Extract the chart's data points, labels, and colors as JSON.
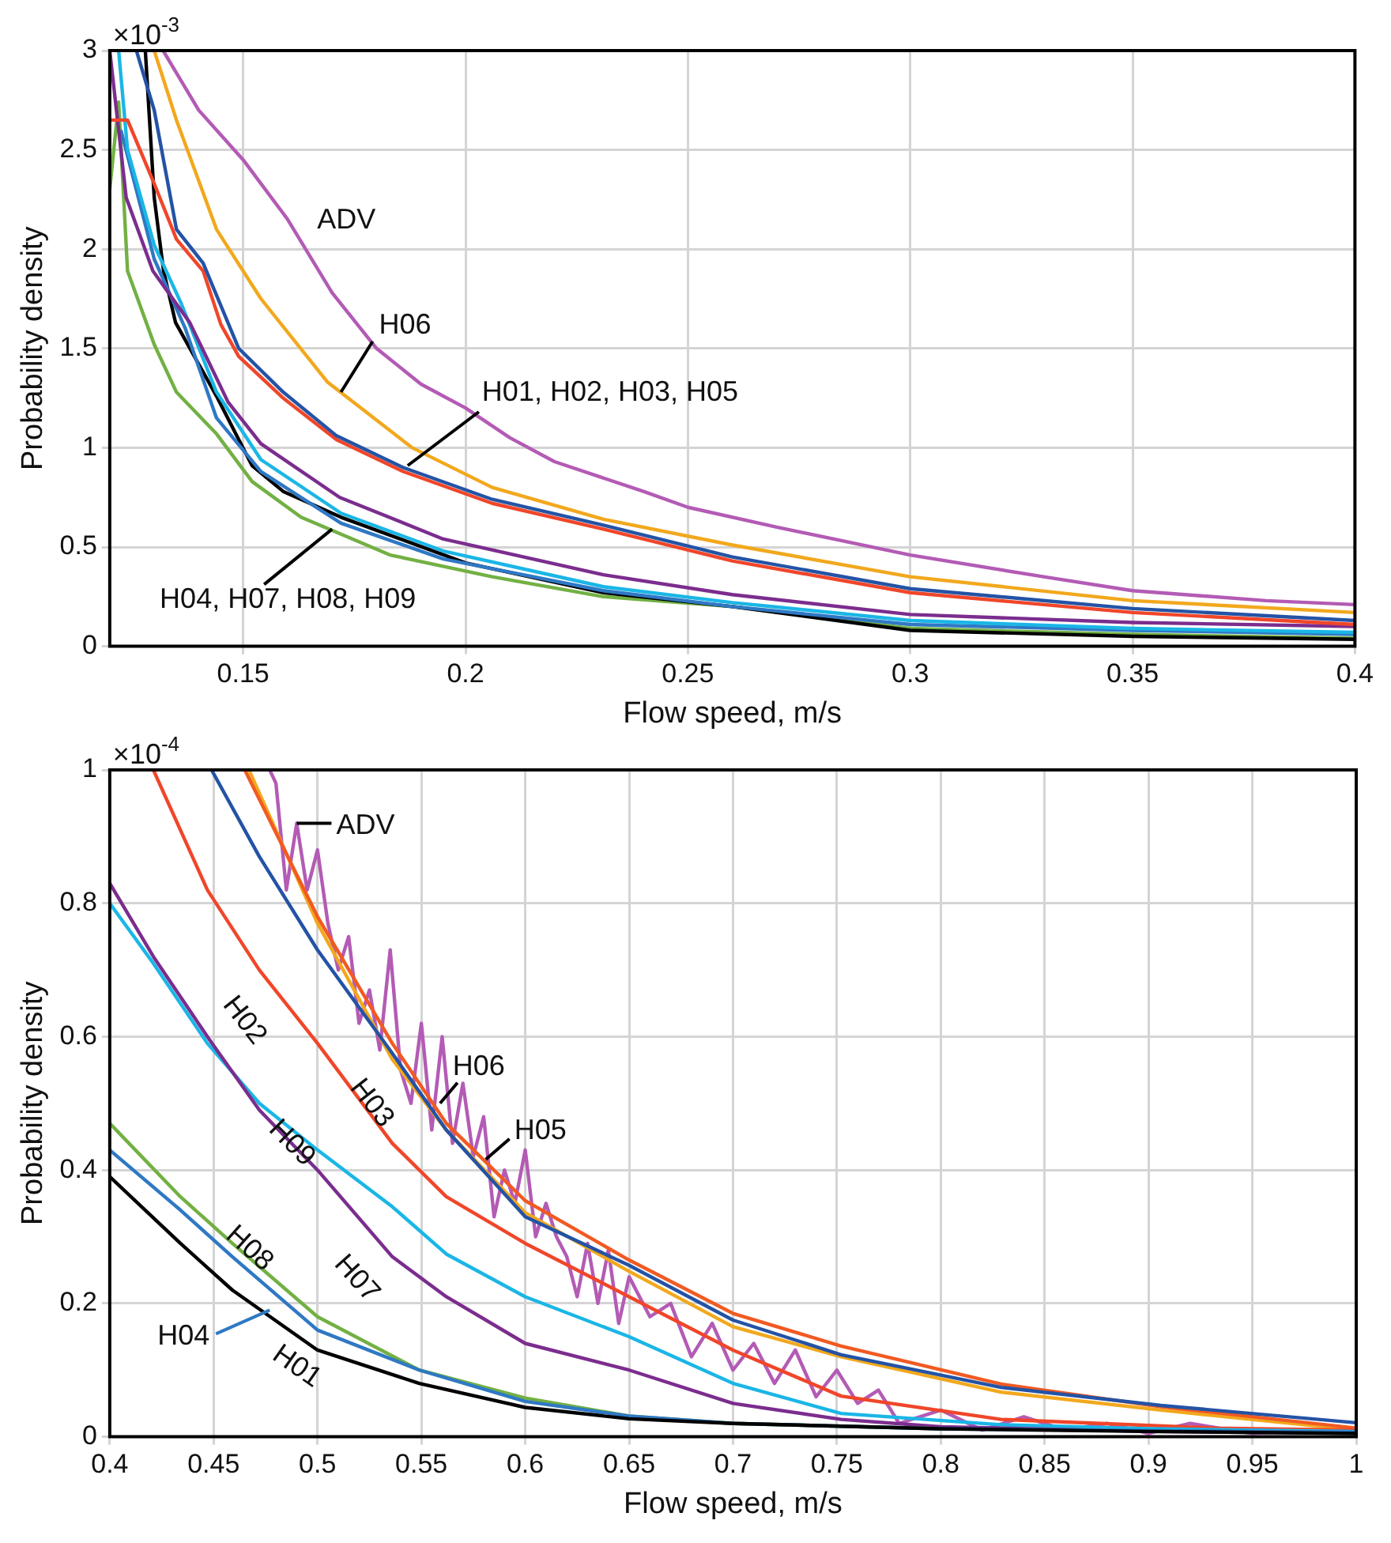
{
  "chart_data": [
    {
      "type": "line",
      "xlabel": "Flow speed, m/s",
      "ylabel": "Probability density",
      "xlim": [
        0.12,
        0.4
      ],
      "ylim": [
        0,
        3
      ],
      "xticks": [
        0.15,
        0.2,
        0.25,
        0.3,
        0.35,
        0.4
      ],
      "yticks": [
        0,
        0.5,
        1,
        1.5,
        2,
        2.5,
        3
      ],
      "grid": true,
      "legend": false,
      "marker": "none",
      "annotations": [
        "×10$^{-3}$",
        "ADV",
        {
          "text": "H06",
          "x": 0.172,
          "y": 1.28
        },
        {
          "text": "H01, H02, H03, H05",
          "x": 0.187,
          "y": 0.91
        },
        {
          "text": "H04, H07, H08, H09",
          "x": 0.17,
          "y": 0.59
        }
      ],
      "series": [
        {
          "color": "#b35bb5",
          "x": [
            0.132,
            0.14,
            0.15,
            0.16,
            0.17,
            0.18,
            0.19,
            0.2,
            0.21,
            0.22,
            0.24,
            0.25,
            0.27,
            0.3,
            0.33,
            0.35,
            0.38,
            0.4
          ],
          "values": [
            3,
            2.7,
            2.45,
            2.15,
            1.78,
            1.5,
            1.32,
            1.2,
            1.05,
            0.93,
            0.78,
            0.7,
            0.6,
            0.46,
            0.35,
            0.28,
            0.23,
            0.21
          ]
        },
        {
          "color": "#f2a81d",
          "x": [
            0.13,
            0.135,
            0.144,
            0.154,
            0.169,
            0.188,
            0.206,
            0.231,
            0.26,
            0.3,
            0.35,
            0.4
          ],
          "values": [
            3,
            2.65,
            2.1,
            1.75,
            1.33,
            1.0,
            0.8,
            0.64,
            0.51,
            0.35,
            0.23,
            0.17
          ]
        },
        {
          "color": "#2453a5",
          "x": [
            0.126,
            0.13,
            0.135,
            0.141,
            0.149,
            0.159,
            0.171,
            0.186,
            0.206,
            0.231,
            0.26,
            0.3,
            0.35,
            0.4
          ],
          "values": [
            3,
            2.7,
            2.1,
            1.93,
            1.5,
            1.28,
            1.06,
            0.9,
            0.74,
            0.61,
            0.45,
            0.29,
            0.19,
            0.13
          ]
        },
        {
          "color": "#f0462a",
          "x": [
            0.12,
            0.124,
            0.13,
            0.135,
            0.141,
            0.145,
            0.149,
            0.159,
            0.171,
            0.186,
            0.206,
            0.231,
            0.26,
            0.3,
            0.35,
            0.4
          ],
          "values": [
            2.65,
            2.65,
            2.33,
            2.05,
            1.89,
            1.62,
            1.46,
            1.25,
            1.04,
            0.88,
            0.72,
            0.59,
            0.43,
            0.27,
            0.17,
            0.11
          ]
        },
        {
          "color": "#7b2d8e",
          "x": [
            0.12,
            0.1237,
            0.1297,
            0.138,
            0.1466,
            0.154,
            0.1717,
            0.195,
            0.231,
            0.26,
            0.3,
            0.35,
            0.4
          ],
          "values": [
            3,
            2.26,
            1.89,
            1.63,
            1.23,
            1.02,
            0.75,
            0.54,
            0.36,
            0.26,
            0.16,
            0.12,
            0.1
          ]
        },
        {
          "color": "#1ab6e6",
          "x": [
            0.122,
            0.124,
            0.13,
            0.136,
            0.144,
            0.154,
            0.172,
            0.195,
            0.231,
            0.26,
            0.3,
            0.35,
            0.4
          ],
          "values": [
            3,
            2.5,
            2.02,
            1.73,
            1.28,
            0.94,
            0.67,
            0.48,
            0.3,
            0.22,
            0.13,
            0.09,
            0.07
          ]
        },
        {
          "color": "#2f78c4",
          "x": [
            0.1225,
            0.13,
            0.137,
            0.144,
            0.154,
            0.172,
            0.195,
            0.231,
            0.26,
            0.3,
            0.35,
            0.4
          ],
          "values": [
            2.6,
            1.95,
            1.6,
            1.15,
            0.88,
            0.62,
            0.44,
            0.28,
            0.2,
            0.11,
            0.08,
            0.06
          ]
        },
        {
          "color": "#000000",
          "x": [
            0.128,
            0.13,
            0.1321,
            0.1348,
            0.144,
            0.152,
            0.159,
            0.172,
            0.2,
            0.231,
            0.26,
            0.3,
            0.35,
            0.4
          ],
          "values": [
            3,
            2.26,
            1.89,
            1.63,
            1.26,
            0.91,
            0.78,
            0.65,
            0.42,
            0.27,
            0.2,
            0.08,
            0.05,
            0.035
          ]
        },
        {
          "color": "#72b043",
          "x": [
            0.12,
            0.122,
            0.124,
            0.13,
            0.135,
            0.144,
            0.152,
            0.163,
            0.183,
            0.206,
            0.231,
            0.26,
            0.3,
            0.35,
            0.4
          ],
          "values": [
            2.3,
            2.74,
            1.89,
            1.52,
            1.28,
            1.07,
            0.83,
            0.65,
            0.46,
            0.35,
            0.25,
            0.2,
            0.09,
            0.06,
            0.04
          ]
        }
      ]
    },
    {
      "type": "line",
      "xlabel": "Flow speed, m/s",
      "ylabel": "Probability density",
      "xlim": [
        0.4,
        1
      ],
      "ylim": [
        0,
        1
      ],
      "xticks": [
        0.4,
        0.45,
        0.5,
        0.55,
        0.6,
        0.65,
        0.7,
        0.75,
        0.8,
        0.85,
        0.9,
        0.95,
        1
      ],
      "yticks": [
        0,
        0.2,
        0.4,
        0.6,
        0.8,
        1
      ],
      "grid": true,
      "legend": false,
      "marker": "none",
      "annotations": [
        "×10$^{-4}$",
        {
          "text": "ADV",
          "x": 0.49,
          "y": 0.92
        },
        {
          "text": "H06",
          "x": 0.559,
          "y": 0.5
        },
        {
          "text": "H05",
          "x": 0.581,
          "y": 0.416
        },
        "H02",
        "H03",
        "H09",
        "H07",
        "H08",
        "H01",
        {
          "text": "H04",
          "x": 0.477,
          "y": 0.19
        }
      ],
      "series": [
        {
          "color": "#000000",
          "x": [
            0.4,
            0.434,
            0.459,
            0.5,
            0.549,
            0.6,
            0.65,
            0.7,
            0.8,
            0.9,
            1.0
          ],
          "values": [
            0.39,
            0.29,
            0.22,
            0.13,
            0.08,
            0.044,
            0.027,
            0.02,
            0.012,
            0.008,
            0.005
          ]
        },
        {
          "color": "#2f78c4",
          "x": [
            0.4,
            0.434,
            0.459,
            0.5,
            0.549,
            0.6,
            0.65,
            0.7,
            0.8,
            0.9,
            1.0
          ],
          "values": [
            0.43,
            0.34,
            0.27,
            0.16,
            0.1,
            0.053,
            0.031,
            0.02,
            0.012,
            0.009,
            0.007
          ]
        },
        {
          "color": "#72b043",
          "x": [
            0.4,
            0.434,
            0.459,
            0.5,
            0.549,
            0.6,
            0.65,
            0.7,
            0.8
          ],
          "values": [
            0.47,
            0.36,
            0.29,
            0.18,
            0.1,
            0.058,
            0.031,
            0.02,
            0.012
          ]
        },
        {
          "color": "#7b2d8e",
          "x": [
            0.4,
            0.421,
            0.447,
            0.472,
            0.5,
            0.536,
            0.562,
            0.6,
            0.65,
            0.7,
            0.752,
            0.8,
            0.9,
            1.0
          ],
          "values": [
            0.83,
            0.72,
            0.6,
            0.49,
            0.4,
            0.27,
            0.21,
            0.14,
            0.1,
            0.05,
            0.026,
            0.015,
            0.008,
            0.005
          ]
        },
        {
          "color": "#1ab6e6",
          "x": [
            0.4,
            0.421,
            0.447,
            0.472,
            0.5,
            0.536,
            0.562,
            0.6,
            0.65,
            0.7,
            0.752,
            0.829,
            0.9,
            1.0
          ],
          "values": [
            0.8,
            0.71,
            0.59,
            0.5,
            0.43,
            0.345,
            0.274,
            0.21,
            0.15,
            0.08,
            0.035,
            0.018,
            0.012,
            0.008
          ]
        },
        {
          "color": "#f0462a",
          "x": [
            0.421,
            0.447,
            0.472,
            0.5,
            0.536,
            0.562,
            0.6,
            0.65,
            0.7,
            0.752,
            0.829,
            0.932,
            1.0
          ],
          "values": [
            1.0,
            0.82,
            0.7,
            0.59,
            0.44,
            0.36,
            0.29,
            0.21,
            0.13,
            0.061,
            0.026,
            0.013,
            0.01
          ]
        },
        {
          "color": "#2453a5",
          "x": [
            0.449,
            0.472,
            0.5,
            0.536,
            0.562,
            0.6,
            0.65,
            0.7,
            0.752,
            0.829,
            0.906,
            1.0
          ],
          "values": [
            1.0,
            0.87,
            0.73,
            0.575,
            0.46,
            0.33,
            0.257,
            0.175,
            0.123,
            0.074,
            0.047,
            0.021
          ]
        },
        {
          "color": "#f15a22",
          "x": [
            0.465,
            0.5,
            0.536,
            0.562,
            0.6,
            0.65,
            0.7,
            0.752,
            0.829,
            0.906,
            1.0
          ],
          "values": [
            1.0,
            0.78,
            0.59,
            0.47,
            0.354,
            0.265,
            0.185,
            0.136,
            0.079,
            0.045,
            0.013
          ]
        },
        {
          "color": "#f2a81d",
          "x": [
            0.467,
            0.5,
            0.536,
            0.562,
            0.6,
            0.65,
            0.7,
            0.752,
            0.829,
            0.906,
            1.0
          ],
          "values": [
            1.0,
            0.77,
            0.566,
            0.46,
            0.336,
            0.248,
            0.165,
            0.12,
            0.067,
            0.04,
            0.01
          ]
        },
        {
          "color": "#b35bb5",
          "x": [
            0.477,
            0.48,
            0.485,
            0.49,
            0.495,
            0.5,
            0.505,
            0.51,
            0.515,
            0.52,
            0.525,
            0.53,
            0.535,
            0.54,
            0.545,
            0.55,
            0.555,
            0.56,
            0.565,
            0.57,
            0.575,
            0.58,
            0.585,
            0.59,
            0.595,
            0.6,
            0.605,
            0.61,
            0.615,
            0.62,
            0.625,
            0.63,
            0.635,
            0.64,
            0.645,
            0.65,
            0.66,
            0.67,
            0.68,
            0.69,
            0.7,
            0.71,
            0.72,
            0.73,
            0.74,
            0.75,
            0.76,
            0.77,
            0.78,
            0.8,
            0.82,
            0.84,
            0.86,
            0.88,
            0.9,
            0.92,
            0.95,
            0.98,
            1.0
          ],
          "values": [
            1.0,
            0.98,
            0.82,
            0.92,
            0.82,
            0.88,
            0.77,
            0.7,
            0.75,
            0.62,
            0.67,
            0.58,
            0.73,
            0.55,
            0.5,
            0.62,
            0.46,
            0.6,
            0.44,
            0.53,
            0.42,
            0.48,
            0.33,
            0.4,
            0.35,
            0.43,
            0.3,
            0.35,
            0.3,
            0.27,
            0.21,
            0.29,
            0.2,
            0.28,
            0.17,
            0.24,
            0.18,
            0.2,
            0.12,
            0.17,
            0.1,
            0.14,
            0.08,
            0.13,
            0.06,
            0.1,
            0.05,
            0.07,
            0.02,
            0.04,
            0.01,
            0.03,
            0.01,
            0.02,
            0.005,
            0.02,
            0.005,
            0.01,
            0.005
          ]
        }
      ]
    }
  ]
}
